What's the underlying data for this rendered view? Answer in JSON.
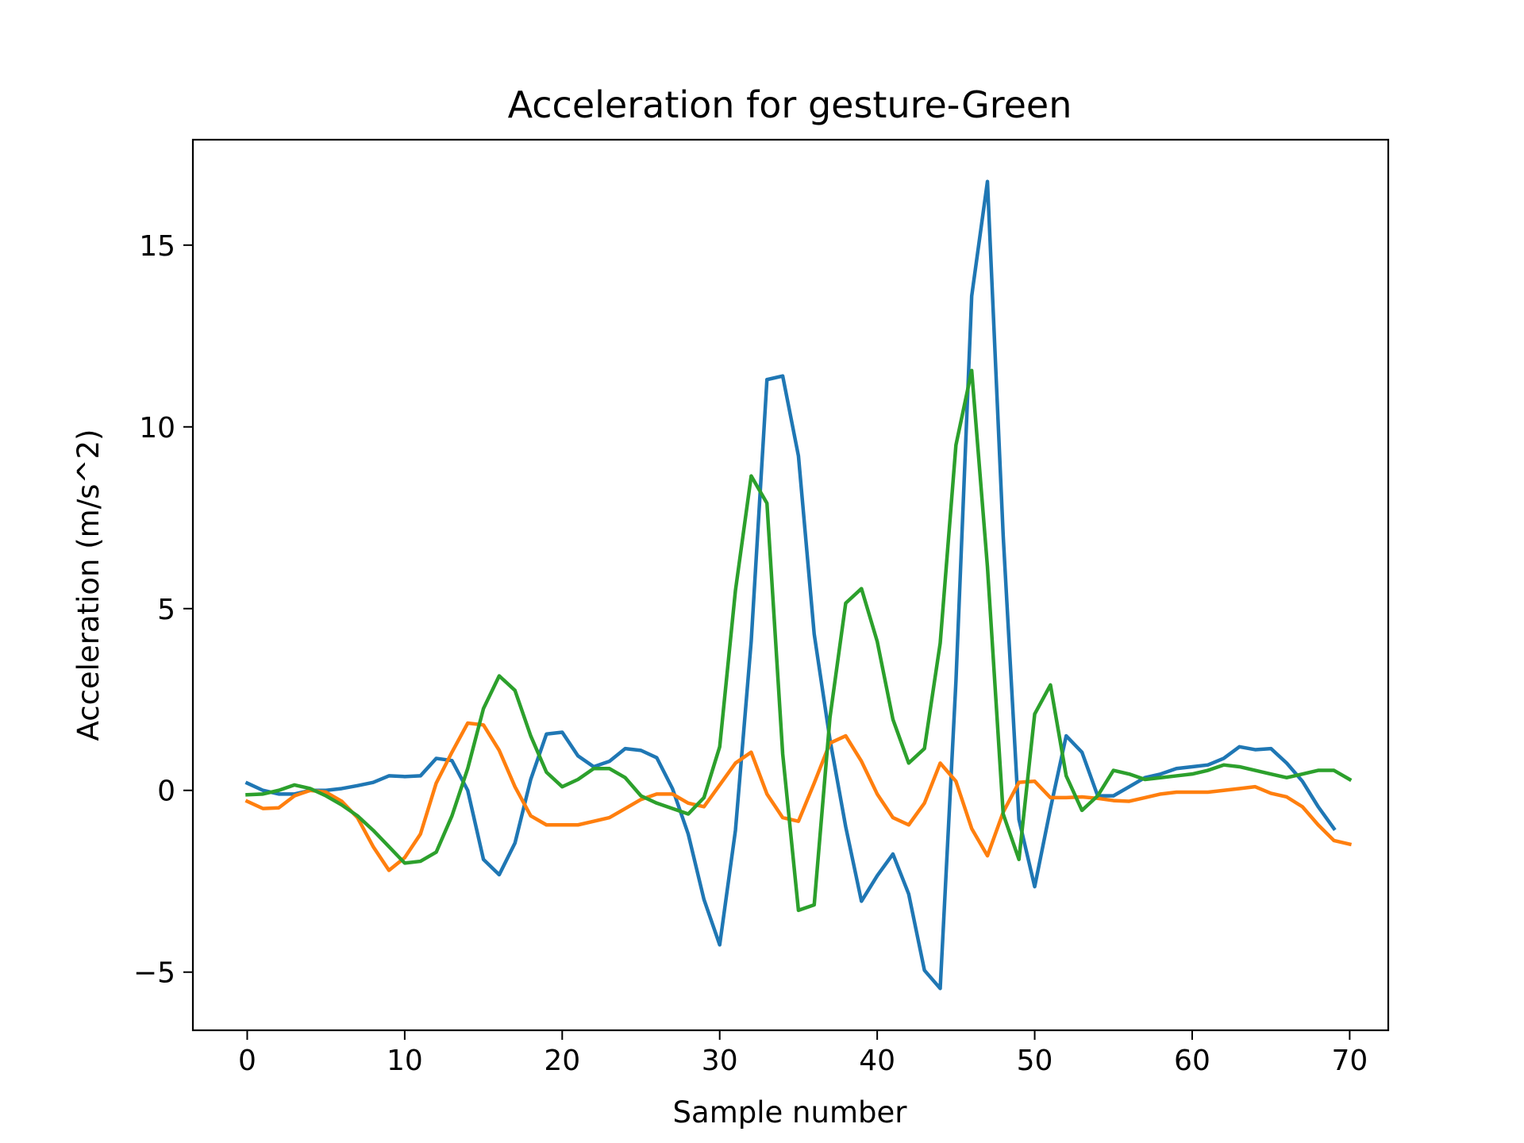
{
  "chart_data": {
    "type": "line",
    "title": "Acceleration for gesture-Green",
    "xlabel": "Sample number",
    "ylabel": "Acceleration (m/s^2)",
    "xlim": [
      -3.45,
      72.45
    ],
    "ylim": [
      -6.6,
      17.9
    ],
    "xticks": [
      0,
      10,
      20,
      30,
      40,
      50,
      60,
      70
    ],
    "yticks": [
      -5,
      0,
      5,
      10,
      15
    ],
    "xtick_labels": [
      "0",
      "10",
      "20",
      "30",
      "40",
      "50",
      "60",
      "70"
    ],
    "ytick_labels": [
      "−5",
      "0",
      "5",
      "10",
      "15"
    ],
    "grid": false,
    "legend": "none",
    "series": [
      {
        "color": "#1f77b4",
        "values": [
          0.2,
          0.0,
          -0.1,
          -0.1,
          0.0,
          0.0,
          0.05,
          0.13,
          0.22,
          0.4,
          0.38,
          0.4,
          0.88,
          0.82,
          0.0,
          -1.9,
          -2.32,
          -1.45,
          0.3,
          1.55,
          1.6,
          0.95,
          0.65,
          0.8,
          1.15,
          1.1,
          0.9,
          0.05,
          -1.2,
          -3.0,
          -4.25,
          -1.1,
          4.1,
          11.3,
          11.4,
          9.2,
          4.3,
          1.4,
          -1.0,
          -3.05,
          -2.35,
          -1.75,
          -2.85,
          -4.95,
          -5.45,
          3.0,
          13.6,
          16.75,
          7.0,
          -0.8,
          -2.65,
          -0.5,
          1.5,
          1.05,
          -0.15,
          -0.15,
          0.1,
          0.35,
          0.45,
          0.6,
          0.65,
          0.7,
          0.88,
          1.2,
          1.12,
          1.15,
          0.75,
          0.25,
          -0.45,
          -1.05
        ]
      },
      {
        "color": "#ff7f0e",
        "values": [
          -0.3,
          -0.5,
          -0.48,
          -0.15,
          0.0,
          -0.05,
          -0.3,
          -0.75,
          -1.55,
          -2.2,
          -1.85,
          -1.2,
          0.2,
          1.05,
          1.85,
          1.8,
          1.1,
          0.1,
          -0.7,
          -0.95,
          -0.95,
          -0.95,
          -0.85,
          -0.75,
          -0.5,
          -0.25,
          -0.1,
          -0.1,
          -0.35,
          -0.45,
          0.15,
          0.75,
          1.05,
          -0.1,
          -0.75,
          -0.85,
          0.2,
          1.3,
          1.5,
          0.8,
          -0.1,
          -0.75,
          -0.95,
          -0.35,
          0.75,
          0.25,
          -1.05,
          -1.8,
          -0.6,
          0.22,
          0.25,
          -0.2,
          -0.2,
          -0.18,
          -0.22,
          -0.28,
          -0.3,
          -0.2,
          -0.1,
          -0.05,
          -0.05,
          -0.05,
          0.0,
          0.05,
          0.1,
          -0.08,
          -0.18,
          -0.45,
          -0.95,
          -1.38,
          -1.48
        ]
      },
      {
        "color": "#2ca02c",
        "values": [
          -0.12,
          -0.1,
          0.0,
          0.15,
          0.05,
          -0.15,
          -0.4,
          -0.7,
          -1.1,
          -1.55,
          -2.0,
          -1.95,
          -1.7,
          -0.7,
          0.6,
          2.25,
          3.15,
          2.75,
          1.5,
          0.5,
          0.1,
          0.3,
          0.6,
          0.6,
          0.35,
          -0.15,
          -0.35,
          -0.5,
          -0.65,
          -0.2,
          1.2,
          5.5,
          8.65,
          7.9,
          1.0,
          -3.3,
          -3.15,
          2.0,
          5.15,
          5.55,
          4.1,
          1.95,
          0.75,
          1.15,
          4.05,
          9.5,
          11.55,
          6.15,
          -0.65,
          -1.9,
          2.1,
          2.9,
          0.4,
          -0.55,
          -0.15,
          0.55,
          0.45,
          0.3,
          0.35,
          0.4,
          0.45,
          0.55,
          0.7,
          0.65,
          0.55,
          0.45,
          0.35,
          0.45,
          0.55,
          0.55,
          0.3
        ]
      }
    ]
  }
}
